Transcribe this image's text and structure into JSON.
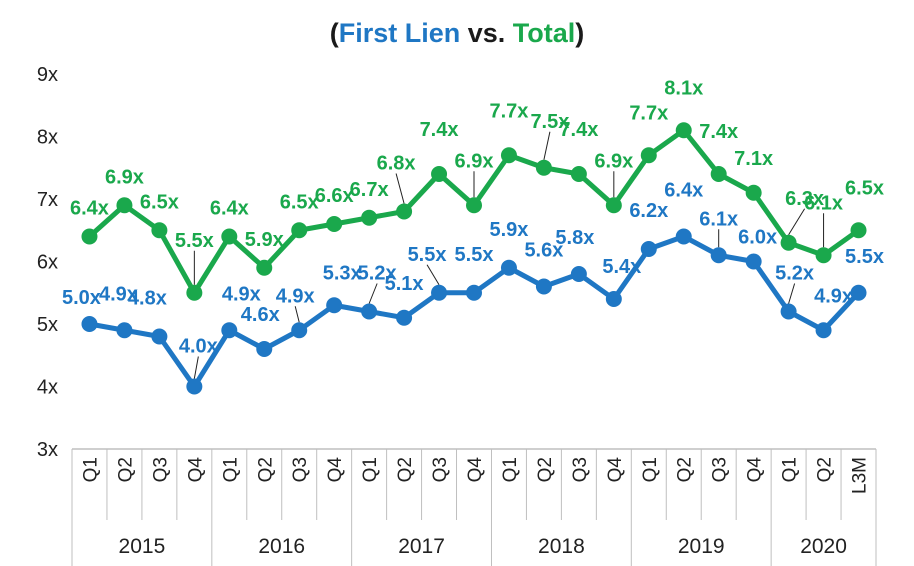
{
  "chart_data": {
    "type": "line",
    "title_parts": [
      {
        "text": "(",
        "color": "#1a1a1a"
      },
      {
        "text": "First Lien",
        "color": "#1f77c4"
      },
      {
        "text": " vs. ",
        "color": "#1a1a1a"
      },
      {
        "text": "Total",
        "color": "#1aa84c"
      },
      {
        "text": ")",
        "color": "#1a1a1a"
      }
    ],
    "ylim": [
      3,
      9
    ],
    "yticks": [
      "3x",
      "4x",
      "5x",
      "6x",
      "7x",
      "8x",
      "9x"
    ],
    "x": [
      "Q1",
      "Q2",
      "Q3",
      "Q4",
      "Q1",
      "Q2",
      "Q3",
      "Q4",
      "Q1",
      "Q2",
      "Q3",
      "Q4",
      "Q1",
      "Q2",
      "Q3",
      "Q4",
      "Q1",
      "Q2",
      "Q3",
      "Q4",
      "Q1",
      "Q2",
      "L3M"
    ],
    "years": [
      {
        "label": "2015",
        "span": 4
      },
      {
        "label": "2016",
        "span": 4
      },
      {
        "label": "2017",
        "span": 4
      },
      {
        "label": "2018",
        "span": 4
      },
      {
        "label": "2019",
        "span": 4
      },
      {
        "label": "2020",
        "span": 3
      }
    ],
    "series": [
      {
        "name": "Total",
        "color": "#1aa84c",
        "values": [
          6.4,
          6.9,
          6.5,
          5.5,
          6.4,
          5.9,
          6.5,
          6.6,
          6.7,
          6.8,
          7.4,
          6.9,
          7.7,
          7.5,
          7.4,
          6.9,
          7.7,
          8.1,
          7.4,
          7.1,
          6.3,
          6.1,
          6.5
        ],
        "labels": [
          "6.4x",
          "6.9x",
          "6.5x",
          "5.5x",
          "6.4x",
          "5.9x",
          "6.5x",
          "6.6x",
          "6.7x",
          "6.8x",
          "7.4x",
          "6.9x",
          "7.7x",
          "7.5x",
          "7.4x",
          "6.9x",
          "7.7x",
          "8.1x",
          "7.4x",
          "7.1x",
          "6.3x",
          "6.1x",
          "6.5x"
        ]
      },
      {
        "name": "First Lien",
        "color": "#1f77c4",
        "values": [
          5.0,
          4.9,
          4.8,
          4.0,
          4.9,
          4.6,
          4.9,
          5.3,
          5.2,
          5.1,
          5.5,
          5.5,
          5.9,
          5.6,
          5.8,
          5.4,
          6.2,
          6.4,
          6.1,
          6.0,
          5.2,
          4.9,
          5.5
        ],
        "labels": [
          "5.0x",
          "4.9x",
          "4.8x",
          "4.0x",
          "4.9x",
          "4.6x",
          "4.9x",
          "5.3x",
          "5.2x",
          "5.1x",
          "5.5x",
          "5.5x",
          "5.9x",
          "5.6x",
          "5.8x",
          "5.4x",
          "6.2x",
          "6.4x",
          "6.1x",
          "6.0x",
          "5.2x",
          "4.9x",
          "5.5x"
        ]
      }
    ],
    "grid": false,
    "legend": "none"
  }
}
